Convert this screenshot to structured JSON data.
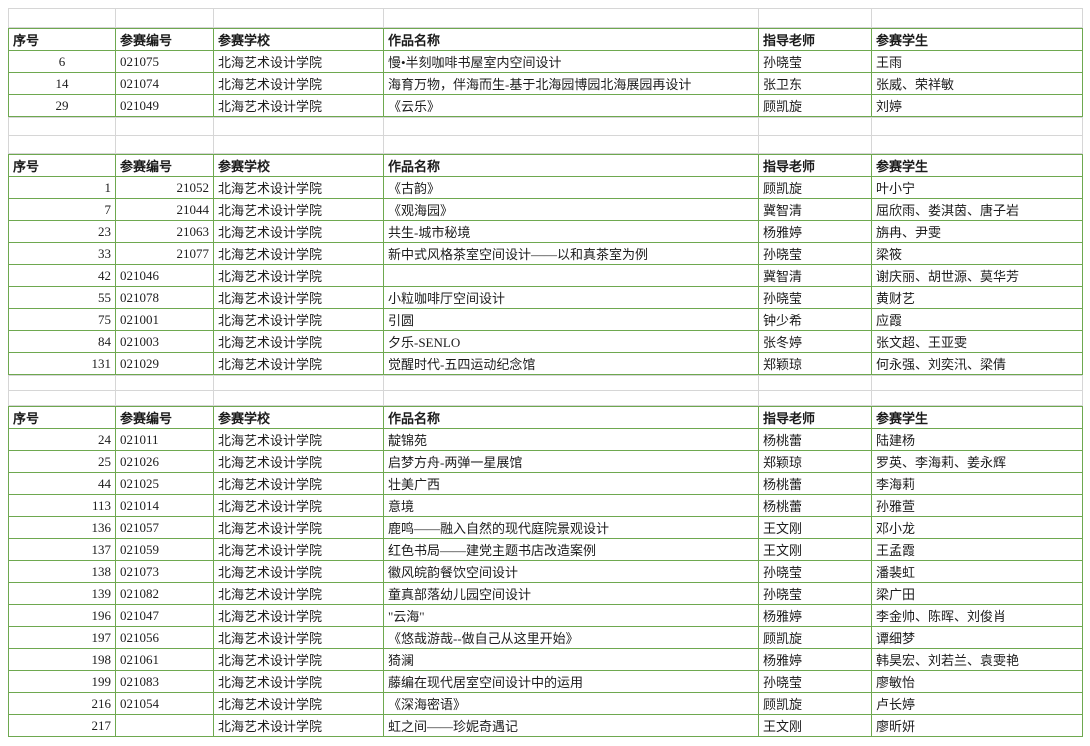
{
  "table": {
    "columns": [
      "序号",
      "参赛编号",
      "参赛学校",
      "作品名称",
      "指导老师",
      "参赛学生"
    ],
    "sections": [
      {
        "name": "group-1",
        "no_align": "center",
        "rows": [
          {
            "no": "6",
            "code": "021075",
            "code_align": "left",
            "school": "北海艺术设计学院",
            "work": "慢•半刻咖啡书屋室内空间设计",
            "teacher": "孙晓莹",
            "students": "王雨"
          },
          {
            "no": "14",
            "code": "021074",
            "code_align": "left",
            "school": "北海艺术设计学院",
            "work": "海育万物，伴海而生-基于北海园博园北海展园再设计",
            "teacher": "张卫东",
            "students": "张威、荣祥敏"
          },
          {
            "no": "29",
            "code": "021049",
            "code_align": "left",
            "school": "北海艺术设计学院",
            "work": "《云乐》",
            "teacher": "顾凯旋",
            "students": "刘婷"
          }
        ]
      },
      {
        "name": "group-2",
        "no_align": "right",
        "rows": [
          {
            "no": "1",
            "code": "21052",
            "code_align": "right",
            "school": "北海艺术设计学院",
            "work": "《古韵》",
            "teacher": "顾凯旋",
            "students": "叶小宁"
          },
          {
            "no": "7",
            "code": "21044",
            "code_align": "right",
            "school": "北海艺术设计学院",
            "work": "《观海园》",
            "teacher": "冀智清",
            "students": "屈欣雨、娄淇茵、唐子岩"
          },
          {
            "no": "23",
            "code": "21063",
            "code_align": "right",
            "school": "北海艺术设计学院",
            "work": "共生-城市秘境",
            "teacher": "杨雅婷",
            "students": "旃冉、尹雯"
          },
          {
            "no": "33",
            "code": "21077",
            "code_align": "right",
            "school": "北海艺术设计学院",
            "work": "新中式风格茶室空间设计——以和真茶室为例",
            "teacher": "孙晓莹",
            "students": "梁筱"
          },
          {
            "no": "42",
            "code": "021046",
            "code_align": "left",
            "school": "北海艺术设计学院",
            "work": "",
            "teacher": "冀智清",
            "students": "谢庆丽、胡世源、莫华芳"
          },
          {
            "no": "55",
            "code": "021078",
            "code_align": "left",
            "school": "北海艺术设计学院",
            "work": "小粒咖啡厅空间设计",
            "teacher": "孙晓莹",
            "students": "黄财艺"
          },
          {
            "no": "75",
            "code": "021001",
            "code_align": "left",
            "school": "北海艺术设计学院",
            "work": "引圆",
            "teacher": "钟少希",
            "students": "应霞"
          },
          {
            "no": "84",
            "code": "021003",
            "code_align": "left",
            "school": "北海艺术设计学院",
            "work": "夕乐-SENLO",
            "teacher": "张冬婷",
            "students": "张文超、王亚雯"
          },
          {
            "no": "131",
            "code": "021029",
            "code_align": "left",
            "school": "北海艺术设计学院",
            "work": "觉醒时代-五四运动纪念馆",
            "teacher": "郑颖琼",
            "students": "何永强、刘奕汛、梁倩"
          }
        ]
      },
      {
        "name": "group-3",
        "no_align": "right",
        "rows": [
          {
            "no": "24",
            "code": "021011",
            "code_align": "left",
            "school": "北海艺术设计学院",
            "work": "靛锦苑",
            "teacher": "杨桃蕾",
            "students": "陆建杨"
          },
          {
            "no": "25",
            "code": "021026",
            "code_align": "left",
            "school": "北海艺术设计学院",
            "work": "启梦方舟-两弹一星展馆",
            "teacher": "郑颖琼",
            "students": "罗英、李海莉、姜永辉"
          },
          {
            "no": "44",
            "code": "021025",
            "code_align": "left",
            "school": "北海艺术设计学院",
            "work": "壮美广西",
            "teacher": "杨桃蕾",
            "students": "李海莉"
          },
          {
            "no": "113",
            "code": "021014",
            "code_align": "left",
            "school": "北海艺术设计学院",
            "work": "意境",
            "teacher": "杨桃蕾",
            "students": "孙雅萱"
          },
          {
            "no": "136",
            "code": "021057",
            "code_align": "left",
            "school": "北海艺术设计学院",
            "work": "鹿鸣——融入自然的现代庭院景观设计",
            "teacher": "王文刚",
            "students": "邓小龙"
          },
          {
            "no": "137",
            "code": "021059",
            "code_align": "left",
            "school": "北海艺术设计学院",
            "work": "红色书局——建党主题书店改造案例",
            "teacher": "王文刚",
            "students": "王孟霞"
          },
          {
            "no": "138",
            "code": "021073",
            "code_align": "left",
            "school": "北海艺术设计学院",
            "work": "徽风皖韵餐饮空间设计",
            "teacher": "孙晓莹",
            "students": "潘裴虹"
          },
          {
            "no": "139",
            "code": "021082",
            "code_align": "left",
            "school": "北海艺术设计学院",
            "work": "童真部落幼儿园空间设计",
            "teacher": "孙晓莹",
            "students": "梁广田"
          },
          {
            "no": "196",
            "code": "021047",
            "code_align": "left",
            "school": "北海艺术设计学院",
            "work": "\"云海\"",
            "teacher": "杨雅婷",
            "students": "李金帅、陈晖、刘俊肖"
          },
          {
            "no": "197",
            "code": "021056",
            "code_align": "left",
            "school": "北海艺术设计学院",
            "work": "《悠哉游哉--做自己从这里开始》",
            "teacher": "顾凯旋",
            "students": "谭细梦"
          },
          {
            "no": "198",
            "code": "021061",
            "code_align": "left",
            "school": "北海艺术设计学院",
            "work": "猗澜",
            "teacher": "杨雅婷",
            "students": "韩昊宏、刘若兰、袁雯艳"
          },
          {
            "no": "199",
            "code": "021083",
            "code_align": "left",
            "school": "北海艺术设计学院",
            "work": "藤编在现代居室空间设计中的运用",
            "teacher": "孙晓莹",
            "students": "廖敏怡"
          },
          {
            "no": "216",
            "code": "021054",
            "code_align": "left",
            "school": "北海艺术设计学院",
            "work": "《深海密语》",
            "teacher": "顾凯旋",
            "students": "卢长婷"
          },
          {
            "no": "217",
            "code": "",
            "code_align": "left",
            "school": "北海艺术设计学院",
            "work": "虹之间——珍妮奇遇记",
            "teacher": "王文刚",
            "students": "廖昕妍"
          }
        ]
      }
    ]
  },
  "colors": {
    "table_border": "#6ea84f",
    "grid_line": "#d6d6d6",
    "text": "#1b1b1b"
  }
}
